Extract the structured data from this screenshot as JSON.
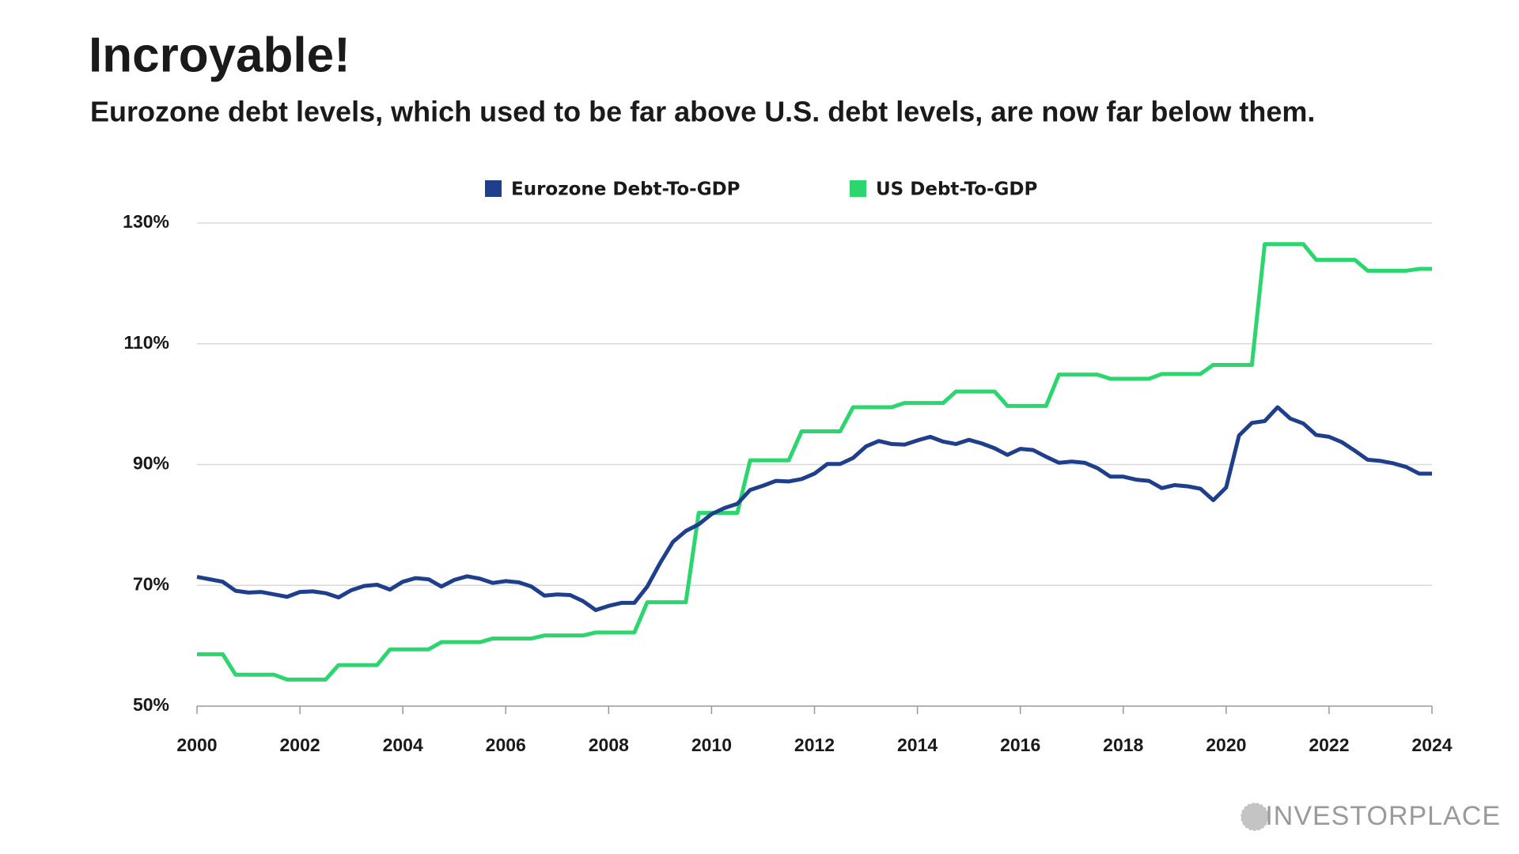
{
  "chart_data": {
    "type": "line",
    "title": "Incroyable!",
    "subtitle": "Eurozone debt levels, which used to be far above U.S. debt levels, are now far below them.",
    "x": [
      2000,
      2000.25,
      2000.5,
      2000.75,
      2001,
      2001.25,
      2001.5,
      2001.75,
      2002,
      2002.25,
      2002.5,
      2002.75,
      2003,
      2003.25,
      2003.5,
      2003.75,
      2004,
      2004.25,
      2004.5,
      2004.75,
      2005,
      2005.25,
      2005.5,
      2005.75,
      2006,
      2006.25,
      2006.5,
      2006.75,
      2007,
      2007.25,
      2007.5,
      2007.75,
      2008,
      2008.25,
      2008.5,
      2008.75,
      2009,
      2009.25,
      2009.5,
      2009.75,
      2010,
      2010.25,
      2010.5,
      2010.75,
      2011,
      2011.25,
      2011.5,
      2011.75,
      2012,
      2012.25,
      2012.5,
      2012.75,
      2013,
      2013.25,
      2013.5,
      2013.75,
      2014,
      2014.25,
      2014.5,
      2014.75,
      2015,
      2015.25,
      2015.5,
      2015.75,
      2016,
      2016.25,
      2016.5,
      2016.75,
      2017,
      2017.25,
      2017.5,
      2017.75,
      2018,
      2018.25,
      2018.5,
      2018.75,
      2019,
      2019.25,
      2019.5,
      2019.75,
      2020,
      2020.25,
      2020.5,
      2020.75,
      2021,
      2021.25,
      2021.5,
      2021.75,
      2022,
      2022.25,
      2022.5,
      2022.75,
      2023,
      2023.25,
      2023.5,
      2023.75,
      2024
    ],
    "series": [
      {
        "name": "Eurozone Debt-To-GDP",
        "color": "#1f3f8c",
        "values": [
          71.4,
          71.0,
          70.6,
          69.1,
          68.8,
          68.9,
          68.5,
          68.1,
          68.9,
          69.0,
          68.7,
          68.0,
          69.2,
          69.9,
          70.1,
          69.3,
          70.6,
          71.2,
          71.0,
          69.8,
          70.9,
          71.5,
          71.1,
          70.4,
          70.7,
          70.5,
          69.8,
          68.3,
          68.5,
          68.4,
          67.4,
          65.9,
          66.6,
          67.1,
          67.1,
          69.8,
          73.7,
          77.2,
          79.0,
          80.1,
          81.8,
          82.8,
          83.5,
          85.8,
          86.5,
          87.3,
          87.2,
          87.6,
          88.5,
          90.1,
          90.1,
          91.1,
          93.0,
          93.9,
          93.4,
          93.3,
          94.0,
          94.6,
          93.8,
          93.4,
          94.1,
          93.5,
          92.7,
          91.6,
          92.6,
          92.4,
          91.3,
          90.3,
          90.5,
          90.3,
          89.4,
          88.0,
          88.0,
          87.5,
          87.3,
          86.1,
          86.6,
          86.4,
          86.0,
          84.1,
          86.2,
          94.8,
          96.9,
          97.2,
          99.5,
          97.6,
          96.8,
          94.9,
          94.6,
          93.7,
          92.3,
          90.8,
          90.6,
          90.2,
          89.6,
          88.5,
          88.5
        ]
      },
      {
        "name": "US Debt-To-GDP",
        "color": "#2ad66d",
        "values": [
          58.6,
          58.6,
          58.6,
          55.2,
          55.2,
          55.2,
          55.2,
          54.4,
          54.4,
          54.4,
          54.4,
          56.8,
          56.8,
          56.8,
          56.8,
          59.4,
          59.4,
          59.4,
          59.4,
          60.6,
          60.6,
          60.6,
          60.6,
          61.2,
          61.2,
          61.2,
          61.2,
          61.7,
          61.7,
          61.7,
          61.7,
          62.2,
          62.2,
          62.2,
          62.2,
          67.2,
          67.2,
          67.2,
          67.2,
          82.0,
          82.0,
          82.0,
          82.0,
          90.7,
          90.7,
          90.7,
          90.7,
          95.5,
          95.5,
          95.5,
          95.5,
          99.5,
          99.5,
          99.5,
          99.5,
          100.2,
          100.2,
          100.2,
          100.2,
          102.1,
          102.1,
          102.1,
          102.1,
          99.7,
          99.7,
          99.7,
          99.7,
          104.9,
          104.9,
          104.9,
          104.9,
          104.2,
          104.2,
          104.2,
          104.2,
          105.0,
          105.0,
          105.0,
          105.0,
          106.5,
          106.5,
          106.5,
          106.5,
          126.5,
          126.5,
          126.5,
          126.5,
          123.9,
          123.9,
          123.9,
          123.9,
          122.1,
          122.1,
          122.1,
          122.1,
          122.4,
          122.4
        ]
      }
    ],
    "xlim": [
      2000,
      2024
    ],
    "xticks": [
      2000,
      2002,
      2004,
      2006,
      2008,
      2010,
      2012,
      2014,
      2016,
      2018,
      2020,
      2022,
      2024
    ],
    "ylim": [
      50,
      130
    ],
    "yticks": [
      {
        "value": 50,
        "label": "50%"
      },
      {
        "value": 70,
        "label": "70%"
      },
      {
        "value": 90,
        "label": "90%"
      },
      {
        "value": 110,
        "label": "110%"
      },
      {
        "value": 130,
        "label": "130%"
      }
    ],
    "grid": true,
    "legend": "top"
  },
  "logo": "INVESTORPLACE"
}
